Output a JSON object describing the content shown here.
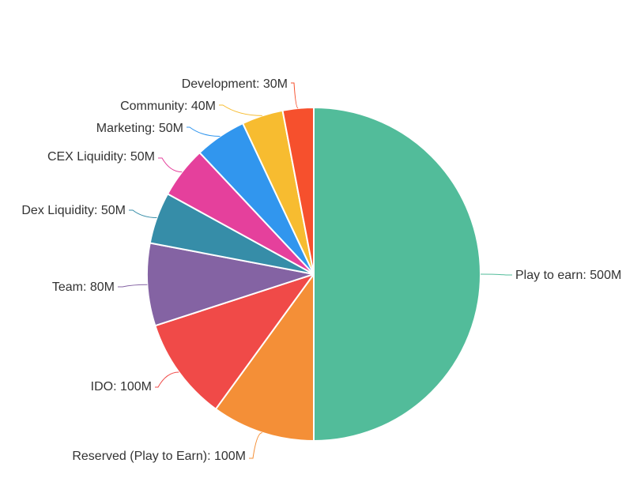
{
  "chart_data": {
    "type": "pie",
    "title": "",
    "unit": "M",
    "start_angle_deg": 0,
    "direction": "clockwise",
    "slices": [
      {
        "label": "Play to earn: 500M",
        "name": "Play to earn",
        "value": 500,
        "color": "#52BC9A"
      },
      {
        "label": "Reserved (Play to Earn): 100M",
        "name": "Reserved (Play to Earn)",
        "value": 100,
        "color": "#F48F37"
      },
      {
        "label": "IDO: 100M",
        "name": "IDO",
        "value": 100,
        "color": "#F04A48"
      },
      {
        "label": "Team: 80M",
        "name": "Team",
        "value": 80,
        "color": "#8463A3"
      },
      {
        "label": "Dex Liquidity: 50M",
        "name": "Dex Liquidity",
        "value": 50,
        "color": "#368DA8"
      },
      {
        "label": "CEX Liquidity: 50M",
        "name": "CEX Liquidity",
        "value": 50,
        "color": "#E5409C"
      },
      {
        "label": "Marketing: 50M",
        "name": "Marketing",
        "value": 50,
        "color": "#3196EE"
      },
      {
        "label": "Community: 40M",
        "name": "Community",
        "value": 40,
        "color": "#F7BC30"
      },
      {
        "label": "Development: 30M",
        "name": "Development",
        "value": 30,
        "color": "#F6502D"
      }
    ],
    "legend": "none",
    "labels": "outside-with-leader-lines"
  }
}
